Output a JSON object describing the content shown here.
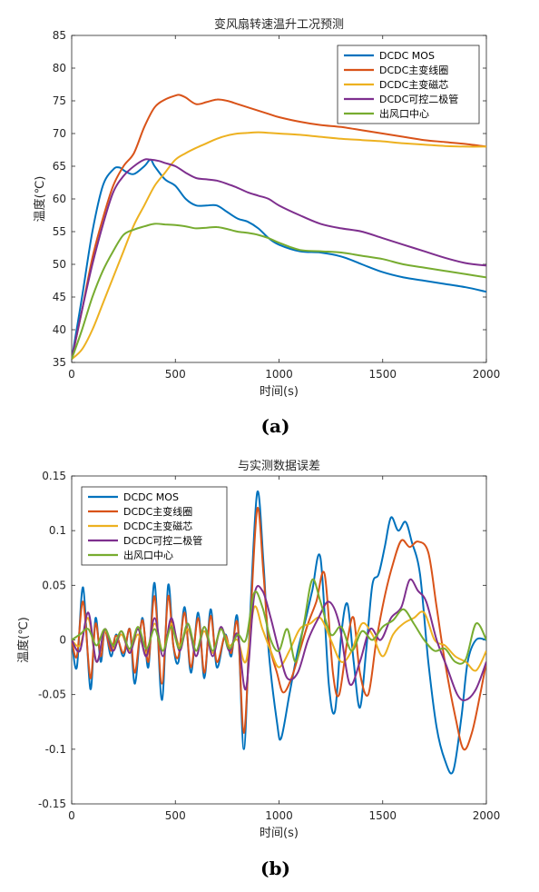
{
  "chart_data": [
    {
      "type": "line",
      "title": "变风扇转速温升工况预测",
      "xlabel": "时间(s)",
      "ylabel": "温度(℃)",
      "caption": "(a)",
      "xlim": [
        0,
        2000
      ],
      "ylim": [
        35,
        85
      ],
      "xticks": [
        0,
        500,
        1000,
        1500,
        2000
      ],
      "yticks": [
        35,
        40,
        45,
        50,
        55,
        60,
        65,
        70,
        75,
        80,
        85
      ],
      "legend_position": "top-right",
      "grid": false,
      "series": [
        {
          "name": "DCDC MOS",
          "color": "#0072BD",
          "x": [
            0,
            50,
            100,
            150,
            200,
            230,
            260,
            300,
            350,
            380,
            400,
            450,
            500,
            550,
            600,
            650,
            700,
            750,
            800,
            850,
            900,
            950,
            1000,
            1100,
            1200,
            1300,
            1400,
            1500,
            1600,
            1700,
            1800,
            1900,
            2000
          ],
          "y": [
            35.5,
            45,
            55,
            62,
            64.5,
            64.8,
            64.2,
            63.8,
            65,
            66,
            65,
            63,
            62,
            60,
            59,
            59,
            59,
            58,
            57,
            56.5,
            55.5,
            54,
            53,
            52,
            51.8,
            51.2,
            50,
            48.8,
            48,
            47.5,
            47,
            46.5,
            45.8
          ]
        },
        {
          "name": "DCDC主变线圈",
          "color": "#D95319",
          "x": [
            0,
            50,
            100,
            150,
            200,
            250,
            300,
            350,
            400,
            450,
            500,
            520,
            550,
            600,
            650,
            700,
            750,
            800,
            850,
            900,
            950,
            1000,
            1100,
            1200,
            1300,
            1400,
            1500,
            1600,
            1700,
            1800,
            1900,
            2000
          ],
          "y": [
            35.5,
            43,
            51,
            57,
            62,
            65,
            67,
            71,
            74,
            75.2,
            75.8,
            75.9,
            75.5,
            74.5,
            74.8,
            75.2,
            75,
            74.5,
            74,
            73.5,
            73,
            72.5,
            71.8,
            71.3,
            71,
            70.5,
            70,
            69.5,
            69,
            68.7,
            68.4,
            68
          ]
        },
        {
          "name": "DCDC主变磁芯",
          "color": "#EDB120",
          "x": [
            0,
            50,
            100,
            150,
            200,
            250,
            300,
            350,
            400,
            450,
            500,
            550,
            600,
            650,
            700,
            750,
            800,
            850,
            900,
            950,
            1000,
            1100,
            1200,
            1300,
            1400,
            1500,
            1600,
            1700,
            1800,
            1900,
            2000
          ],
          "y": [
            35.5,
            37,
            40,
            44,
            48,
            52,
            56,
            59,
            62,
            64,
            66,
            67,
            67.8,
            68.5,
            69.2,
            69.7,
            70,
            70.1,
            70.2,
            70.1,
            70,
            69.8,
            69.5,
            69.2,
            69,
            68.8,
            68.5,
            68.3,
            68.1,
            68,
            68
          ]
        },
        {
          "name": "DCDC可控二极管",
          "color": "#7E2F8E",
          "x": [
            0,
            50,
            100,
            150,
            200,
            250,
            300,
            350,
            380,
            420,
            450,
            500,
            550,
            600,
            650,
            700,
            750,
            800,
            850,
            900,
            950,
            1000,
            1100,
            1200,
            1300,
            1400,
            1500,
            1600,
            1700,
            1800,
            1900,
            2000
          ],
          "y": [
            35.5,
            43,
            50,
            56,
            61,
            63.5,
            65,
            66,
            66,
            65.8,
            65.5,
            65,
            64,
            63.2,
            63,
            62.8,
            62.3,
            61.7,
            61,
            60.5,
            60,
            59,
            57.5,
            56.2,
            55.5,
            55,
            54,
            53,
            52,
            51,
            50.2,
            49.8
          ]
        },
        {
          "name": "出风口中心",
          "color": "#77AC30",
          "x": [
            0,
            50,
            100,
            150,
            200,
            250,
            300,
            350,
            400,
            450,
            500,
            550,
            600,
            650,
            700,
            750,
            800,
            850,
            900,
            950,
            1000,
            1100,
            1200,
            1300,
            1400,
            1500,
            1600,
            1700,
            1800,
            1900,
            2000
          ],
          "y": [
            35.5,
            40,
            45,
            49,
            52,
            54.5,
            55.3,
            55.8,
            56.2,
            56.1,
            56,
            55.8,
            55.5,
            55.6,
            55.7,
            55.4,
            55,
            54.8,
            54.5,
            54,
            53.3,
            52.2,
            52,
            51.8,
            51.3,
            50.8,
            50,
            49.5,
            49,
            48.5,
            48
          ]
        }
      ]
    },
    {
      "type": "line",
      "title": "与实测数据误差",
      "xlabel": "时间(s)",
      "ylabel": "温度(℃)",
      "caption": "(b)",
      "xlim": [
        0,
        2000
      ],
      "ylim": [
        -0.15,
        0.15
      ],
      "xticks": [
        0,
        500,
        1000,
        1500,
        2000
      ],
      "yticks": [
        -0.15,
        -0.1,
        -0.05,
        0,
        0.05,
        0.1,
        0.15
      ],
      "legend_position": "top-left",
      "grid": false,
      "series": [
        {
          "name": "DCDC MOS",
          "color": "#0072BD",
          "x": [
            0,
            25,
            55,
            90,
            115,
            140,
            160,
            190,
            215,
            250,
            280,
            305,
            340,
            370,
            400,
            435,
            465,
            490,
            515,
            545,
            575,
            610,
            640,
            670,
            700,
            740,
            770,
            800,
            830,
            860,
            895,
            925,
            950,
            990,
            1010,
            1050,
            1090,
            1130,
            1160,
            1200,
            1240,
            1270,
            1300,
            1330,
            1360,
            1390,
            1420,
            1450,
            1480,
            1510,
            1540,
            1575,
            1610,
            1640,
            1680,
            1720,
            1760,
            1800,
            1840,
            1880,
            1910,
            1950,
            2000
          ],
          "y": [
            0,
            -0.025,
            0.048,
            -0.045,
            0.02,
            -0.02,
            0.01,
            -0.015,
            0.005,
            -0.015,
            0.01,
            -0.04,
            0.02,
            -0.025,
            0.052,
            -0.055,
            0.05,
            -0.005,
            -0.02,
            0.03,
            -0.03,
            0.025,
            -0.035,
            0.028,
            -0.025,
            0.005,
            -0.015,
            0.02,
            -0.1,
            0.02,
            0.135,
            0.07,
            -0.01,
            -0.075,
            -0.09,
            -0.05,
            -0.01,
            0.02,
            0.045,
            0.075,
            -0.04,
            -0.065,
            0.005,
            0.033,
            -0.02,
            -0.062,
            -0.01,
            0.05,
            0.06,
            0.085,
            0.112,
            0.1,
            0.108,
            0.09,
            0.06,
            -0.02,
            -0.08,
            -0.11,
            -0.12,
            -0.07,
            -0.02,
            0,
            0
          ]
        },
        {
          "name": "DCDC主变线圈",
          "color": "#D95319",
          "x": [
            0,
            25,
            55,
            90,
            115,
            140,
            160,
            190,
            215,
            250,
            280,
            305,
            340,
            370,
            400,
            435,
            465,
            490,
            515,
            545,
            575,
            610,
            640,
            670,
            700,
            740,
            770,
            800,
            830,
            860,
            895,
            925,
            950,
            990,
            1020,
            1060,
            1100,
            1140,
            1180,
            1220,
            1260,
            1290,
            1330,
            1360,
            1390,
            1430,
            1470,
            1510,
            1550,
            1590,
            1630,
            1670,
            1720,
            1760,
            1800,
            1850,
            1890,
            1930,
            1970,
            2000
          ],
          "y": [
            0,
            -0.015,
            0.035,
            -0.035,
            0.015,
            -0.015,
            0.008,
            -0.01,
            0.004,
            -0.012,
            0.01,
            -0.03,
            0.018,
            -0.02,
            0.04,
            -0.04,
            0.04,
            -0.005,
            -0.015,
            0.025,
            -0.025,
            0.02,
            -0.03,
            0.022,
            -0.02,
            0.004,
            -0.012,
            0.015,
            -0.085,
            0.01,
            0.12,
            0.06,
            0.0,
            -0.03,
            -0.048,
            -0.035,
            -0.01,
            0.015,
            0.035,
            0.06,
            -0.03,
            -0.05,
            0.0,
            0.02,
            -0.03,
            -0.05,
            0.0,
            0.04,
            0.07,
            0.091,
            0.085,
            0.09,
            0.08,
            0.03,
            -0.02,
            -0.07,
            -0.1,
            -0.085,
            -0.05,
            -0.02
          ]
        },
        {
          "name": "DCDC主变磁芯",
          "color": "#EDB120",
          "x": [
            0,
            40,
            80,
            120,
            160,
            200,
            240,
            280,
            320,
            360,
            400,
            440,
            480,
            520,
            560,
            600,
            640,
            680,
            720,
            760,
            800,
            840,
            880,
            920,
            960,
            1000,
            1050,
            1100,
            1150,
            1200,
            1250,
            1300,
            1350,
            1400,
            1450,
            1500,
            1550,
            1600,
            1650,
            1700,
            1750,
            1800,
            1850,
            1900,
            1950,
            2000
          ],
          "y": [
            0,
            -0.005,
            0.02,
            -0.02,
            0.008,
            -0.008,
            0.005,
            -0.01,
            0.005,
            -0.012,
            0.015,
            -0.01,
            0.015,
            -0.005,
            0.01,
            -0.01,
            0.008,
            -0.012,
            0.01,
            -0.005,
            0.0,
            -0.02,
            0.03,
            0.01,
            -0.01,
            -0.025,
            -0.01,
            0.01,
            0.015,
            0.02,
            0.0,
            -0.02,
            -0.01,
            0.015,
            0.005,
            -0.015,
            0.005,
            0.015,
            0.02,
            0.025,
            0.0,
            -0.005,
            -0.015,
            -0.02,
            -0.028,
            -0.01
          ]
        },
        {
          "name": "DCDC可控二极管",
          "color": "#7E2F8E",
          "x": [
            0,
            40,
            80,
            120,
            160,
            200,
            240,
            280,
            320,
            360,
            400,
            440,
            480,
            520,
            560,
            600,
            640,
            680,
            720,
            760,
            800,
            840,
            880,
            920,
            960,
            1000,
            1040,
            1090,
            1140,
            1190,
            1240,
            1290,
            1340,
            1390,
            1440,
            1490,
            1540,
            1590,
            1630,
            1670,
            1710,
            1760,
            1810,
            1860,
            1900,
            1950,
            2000
          ],
          "y": [
            0,
            -0.01,
            0.025,
            -0.02,
            0.01,
            -0.01,
            0.008,
            -0.012,
            0.01,
            -0.015,
            0.02,
            -0.015,
            0.02,
            -0.01,
            0.015,
            -0.015,
            0.012,
            -0.015,
            0.012,
            -0.01,
            0.005,
            -0.045,
            0.04,
            0.045,
            0.02,
            -0.01,
            -0.035,
            -0.03,
            0.0,
            0.02,
            0.035,
            0.015,
            -0.04,
            -0.02,
            0.01,
            0.0,
            0.02,
            0.03,
            0.055,
            0.045,
            0.035,
            0.0,
            -0.025,
            -0.05,
            -0.055,
            -0.045,
            -0.02
          ]
        },
        {
          "name": "出风口中心",
          "color": "#77AC30",
          "x": [
            0,
            40,
            80,
            120,
            160,
            200,
            240,
            280,
            320,
            360,
            400,
            440,
            480,
            520,
            560,
            600,
            640,
            680,
            720,
            760,
            800,
            840,
            880,
            920,
            960,
            1000,
            1040,
            1080,
            1120,
            1160,
            1200,
            1250,
            1300,
            1350,
            1400,
            1450,
            1500,
            1550,
            1600,
            1650,
            1700,
            1750,
            1800,
            1850,
            1900,
            1950,
            2000
          ],
          "y": [
            0,
            0.005,
            0.01,
            -0.005,
            0.01,
            -0.005,
            0.008,
            -0.008,
            0.012,
            -0.008,
            0.01,
            -0.01,
            0.012,
            -0.008,
            0.015,
            -0.01,
            0.012,
            -0.01,
            0.01,
            -0.008,
            0.005,
            0.0,
            0.043,
            0.03,
            0.0,
            -0.01,
            0.01,
            -0.02,
            0.015,
            0.055,
            0.035,
            0.005,
            0.012,
            -0.01,
            0.008,
            0.0,
            0.012,
            0.018,
            0.028,
            0.015,
            0.0,
            -0.01,
            -0.008,
            -0.02,
            -0.018,
            0.015,
            0.0
          ]
        }
      ]
    }
  ]
}
